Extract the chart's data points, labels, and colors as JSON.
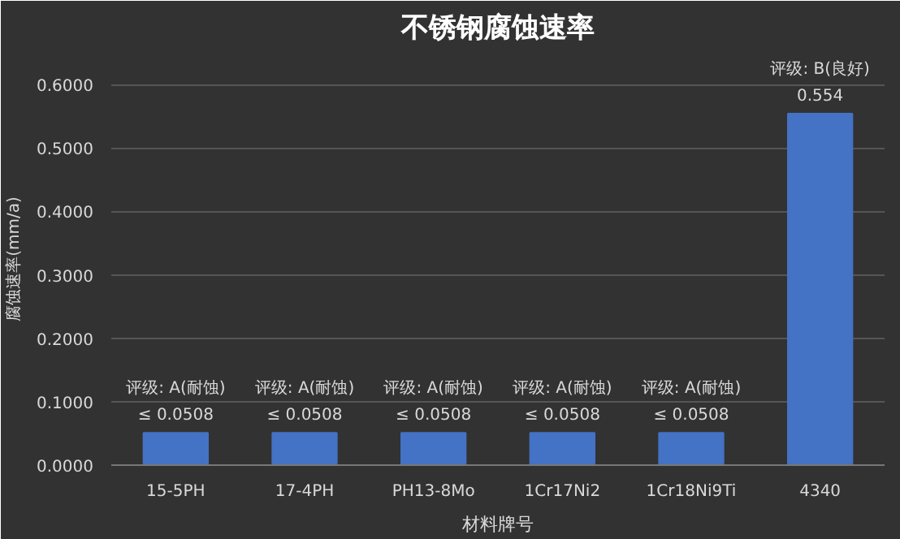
{
  "chart_data": {
    "type": "bar",
    "title": "不锈钢腐蚀速率",
    "xlabel": "材料牌号",
    "ylabel": "腐蚀速率(mm/a)",
    "categories": [
      "15-5PH",
      "17-4PH",
      "PH13-8Mo",
      "1Cr17Ni2",
      "1Cr18Ni9Ti",
      "4340"
    ],
    "values": [
      0.0508,
      0.0508,
      0.0508,
      0.0508,
      0.0508,
      0.554
    ],
    "value_labels": [
      "评级: A(耐蚀)\n≤ 0.0508",
      "评级: A(耐蚀)\n≤ 0.0508",
      "评级: A(耐蚀)\n≤ 0.0508",
      "评级: A(耐蚀)\n≤ 0.0508",
      "评级: A(耐蚀)\n≤ 0.0508",
      "评级: B(良好)\n0.554"
    ],
    "color": "#4472c4",
    "ylim": [
      0,
      0.65
    ],
    "yticks": [
      {
        "value": 0,
        "label": "0.0000"
      },
      {
        "value": 0.1,
        "label": "0.1000"
      },
      {
        "value": 0.2,
        "label": "0.2000"
      },
      {
        "value": 0.3,
        "label": "0.3000"
      },
      {
        "value": 0.4,
        "label": "0.4000"
      },
      {
        "value": 0.5,
        "label": "0.5000"
      },
      {
        "value": 0.6,
        "label": "0.6000"
      }
    ],
    "grid": "y"
  }
}
